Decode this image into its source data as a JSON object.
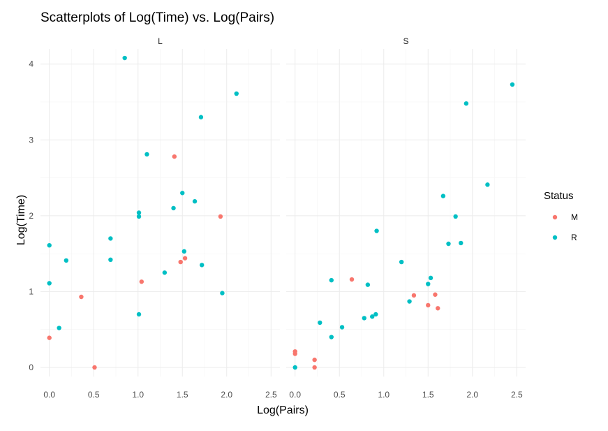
{
  "chart_data": {
    "type": "scatter",
    "title": "Scatterplots of Log(Time) vs. Log(Pairs)",
    "xlabel": "Log(Pairs)",
    "ylabel": "Log(Time)",
    "xlim": [
      -0.1,
      2.6
    ],
    "ylim": [
      -0.12,
      4.2
    ],
    "x_ticks": [
      0.0,
      0.5,
      1.0,
      1.5,
      2.0,
      2.5
    ],
    "x_tick_labels": [
      "0.0",
      "0.5",
      "1.0",
      "1.5",
      "2.0",
      "2.5"
    ],
    "y_ticks": [
      0,
      1,
      2,
      3,
      4
    ],
    "y_tick_labels": [
      "0",
      "1",
      "2",
      "3",
      "4"
    ],
    "grid": true,
    "legend": {
      "title": "Status",
      "position": "right",
      "entries": [
        {
          "label": "M",
          "color": "#F8766D"
        },
        {
          "label": "R",
          "color": "#00BFC4"
        }
      ]
    },
    "facets": [
      {
        "label": "L",
        "series": [
          {
            "name": "M",
            "color": "#F8766D",
            "points": [
              [
                0.0,
                0.39
              ],
              [
                0.36,
                0.93
              ],
              [
                0.51,
                0.0
              ],
              [
                1.04,
                1.13
              ],
              [
                1.41,
                2.78
              ],
              [
                1.48,
                1.39
              ],
              [
                1.53,
                1.44
              ],
              [
                1.93,
                1.99
              ]
            ]
          },
          {
            "name": "R",
            "color": "#00BFC4",
            "points": [
              [
                0.0,
                1.61
              ],
              [
                0.0,
                1.11
              ],
              [
                0.11,
                0.52
              ],
              [
                0.19,
                1.41
              ],
              [
                0.69,
                1.7
              ],
              [
                0.69,
                1.42
              ],
              [
                0.85,
                4.08
              ],
              [
                1.01,
                2.04
              ],
              [
                1.01,
                1.99
              ],
              [
                1.01,
                0.7
              ],
              [
                1.1,
                2.81
              ],
              [
                1.3,
                1.25
              ],
              [
                1.4,
                2.1
              ],
              [
                1.5,
                2.3
              ],
              [
                1.52,
                1.53
              ],
              [
                1.64,
                2.19
              ],
              [
                1.71,
                3.3
              ],
              [
                1.72,
                1.35
              ],
              [
                1.95,
                0.98
              ],
              [
                2.11,
                3.61
              ]
            ]
          }
        ]
      },
      {
        "label": "S",
        "series": [
          {
            "name": "M",
            "color": "#F8766D",
            "points": [
              [
                0.0,
                0.21
              ],
              [
                0.0,
                0.18
              ],
              [
                0.22,
                0.1
              ],
              [
                0.22,
                0.0
              ],
              [
                0.64,
                1.16
              ],
              [
                1.34,
                0.95
              ],
              [
                1.5,
                0.82
              ],
              [
                1.58,
                0.96
              ],
              [
                1.61,
                0.78
              ]
            ]
          },
          {
            "name": "R",
            "color": "#00BFC4",
            "points": [
              [
                0.0,
                0.0
              ],
              [
                0.28,
                0.59
              ],
              [
                0.41,
                1.15
              ],
              [
                0.41,
                0.4
              ],
              [
                0.53,
                0.53
              ],
              [
                0.78,
                0.65
              ],
              [
                0.82,
                1.09
              ],
              [
                0.87,
                0.67
              ],
              [
                0.91,
                0.7
              ],
              [
                0.92,
                1.8
              ],
              [
                1.2,
                1.39
              ],
              [
                1.29,
                0.87
              ],
              [
                1.5,
                1.1
              ],
              [
                1.53,
                1.18
              ],
              [
                1.67,
                2.26
              ],
              [
                1.73,
                1.63
              ],
              [
                1.81,
                1.99
              ],
              [
                1.87,
                1.64
              ],
              [
                1.93,
                3.48
              ],
              [
                2.17,
                2.41
              ],
              [
                2.45,
                3.73
              ]
            ]
          }
        ]
      }
    ]
  }
}
